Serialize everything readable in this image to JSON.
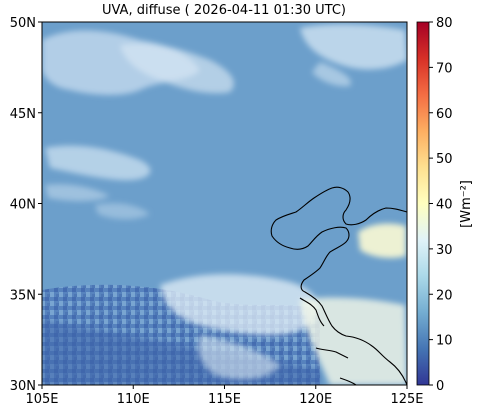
{
  "title": "UVA, diffuse ( 2026-04-11 01:30 UTC)",
  "map": {
    "lat_ticks": [
      "50N",
      "45N",
      "40N",
      "35N",
      "30N"
    ],
    "lon_ticks": [
      "105E",
      "110E",
      "115E",
      "120E",
      "125E"
    ],
    "lon_range": [
      105,
      125
    ],
    "lat_range": [
      30,
      50
    ],
    "field_base_color": "#6c9fcb"
  },
  "colorbar": {
    "label": "[Wm⁻²]",
    "ticks": [
      "0",
      "10",
      "20",
      "30",
      "40",
      "50",
      "60",
      "70",
      "80"
    ],
    "range": [
      0,
      80
    ],
    "colormap": "RdYlBu_r",
    "stops": [
      "#313695",
      "#4575b4",
      "#74add1",
      "#abd9e9",
      "#e0f3f8",
      "#ffffbf",
      "#fee090",
      "#fdae61",
      "#f46d43",
      "#d73027",
      "#a50026"
    ]
  }
}
